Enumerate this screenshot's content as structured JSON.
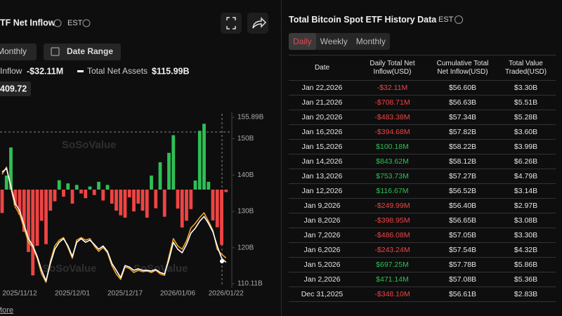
{
  "header": {
    "title": "TF Net Inflow",
    "timezone": "EST"
  },
  "controls": {
    "period": "Monthly",
    "date_range": "Date Range"
  },
  "watermark": "SoSoValue",
  "more": "More",
  "chart_data": {
    "type": "combo",
    "categories": [
      null,
      null,
      null,
      null,
      "2025/11/12",
      null,
      null,
      null,
      null,
      null,
      null,
      null,
      null,
      null,
      null,
      null,
      "2025/12/01",
      null,
      null,
      null,
      null,
      null,
      null,
      null,
      null,
      null,
      null,
      null,
      "2025/12/17",
      null,
      null,
      null,
      null,
      null,
      null,
      null,
      null,
      null,
      null,
      null,
      "2026/01/06",
      null,
      null,
      null,
      null,
      null,
      null,
      null,
      null,
      null,
      null,
      "2026/01/22"
    ],
    "series": [
      {
        "name": "Inflow",
        "value_label": "-$32.11M",
        "type": "bar",
        "axis": "y2",
        "color": "#2fbf55",
        "negative_color": "#ef4444",
        "values": [
          -300,
          180,
          540,
          -200,
          -320,
          -540,
          -800,
          -1100,
          -720,
          -400,
          -700,
          -270,
          -150,
          120,
          -90,
          80,
          -180,
          60,
          -50,
          -110,
          40,
          -70,
          100,
          -140,
          60,
          -180,
          -270,
          -330,
          -360,
          -100,
          -280,
          -180,
          -270,
          -360,
          180,
          -240,
          350,
          -348.1,
          471.14,
          697.25,
          -243.24,
          -486.08,
          -398.95,
          -249.99,
          116.67,
          753.73,
          843.62,
          100.18,
          -394.68,
          -483.38,
          -708.71,
          -32.11
        ]
      },
      {
        "name": "Total Net Assets",
        "value_label": "$115.99B",
        "type": "line",
        "color": "#ffffff",
        "values": [
          140.8,
          141.8,
          136.9,
          132.1,
          130.2,
          126.3,
          122.5,
          120.5,
          117.6,
          113.8,
          110.9,
          115.7,
          119.6,
          121.5,
          122.5,
          120.5,
          117.6,
          121.5,
          122.5,
          121.5,
          122.1,
          120.9,
          119.6,
          120.5,
          119.0,
          115.7,
          113.8,
          111.8,
          115.1,
          114.7,
          113.8,
          114.2,
          113.8,
          113.8,
          113.6,
          114.0,
          113.2,
          112.8,
          116.7,
          121.5,
          119.6,
          118.6,
          120.9,
          124.0,
          125.4,
          127.3,
          128.6,
          126.7,
          124.4,
          120.5,
          117.1,
          115.99
        ]
      },
      {
        "value_label": "409.72",
        "type": "line",
        "color": "#f0a526",
        "values": [
          140.2,
          142.2,
          136.4,
          131.2,
          129.2,
          125.4,
          121.5,
          120.1,
          117.1,
          112.8,
          110.5,
          116.3,
          120.5,
          122.1,
          122.8,
          120.1,
          117.1,
          122.1,
          122.8,
          122.1,
          122.5,
          120.5,
          119.0,
          120.1,
          118.6,
          115.1,
          112.8,
          111.3,
          114.7,
          114.3,
          113.2,
          113.8,
          113.4,
          113.6,
          113.2,
          113.8,
          112.8,
          112.4,
          117.6,
          122.5,
          120.5,
          119.6,
          121.9,
          125.4,
          126.7,
          128.3,
          129.6,
          127.3,
          124.8,
          119.6,
          118.2,
          117.2
        ]
      }
    ],
    "ylim": [
      110.11,
      155.89
    ],
    "yticks": [
      {
        "value": 155.89,
        "label": "155.89B"
      },
      {
        "value": 150,
        "label": "150B"
      },
      {
        "value": 140,
        "label": "140B"
      },
      {
        "value": 130,
        "label": "130B"
      },
      {
        "value": 120,
        "label": "120B"
      },
      {
        "value": 110.11,
        "label": "110.11B"
      }
    ],
    "y2lim": [
      -1260,
      990
    ],
    "grid": false
  },
  "history": {
    "title": "Total Bitcoin Spot ETF History Data",
    "timezone": "EST",
    "tabs": [
      "Daily",
      "Weekly",
      "Monthly"
    ],
    "active_tab": 0,
    "positive_color": "#2fbf55",
    "negative_color": "#ef4444",
    "table": {
      "columns": [
        "Date",
        "Daily Total Net Inflow(USD)",
        "Cumulative Total Net Inflow(USD)",
        "Total Value Traded(USD)"
      ],
      "rows": [
        [
          "Jan 22,2026",
          "-$32.11M",
          "$56.60B",
          "$3.30B"
        ],
        [
          "Jan 21,2026",
          "-$708.71M",
          "$56.63B",
          "$5.51B"
        ],
        [
          "Jan 20,2026",
          "-$483.38M",
          "$57.34B",
          "$5.28B"
        ],
        [
          "Jan 16,2026",
          "-$394.68M",
          "$57.82B",
          "$3.60B"
        ],
        [
          "Jan 15,2026",
          "$100.18M",
          "$58.22B",
          "$3.99B"
        ],
        [
          "Jan 14,2026",
          "$843.62M",
          "$58.12B",
          "$6.26B"
        ],
        [
          "Jan 13,2026",
          "$753.73M",
          "$57.27B",
          "$4.79B"
        ],
        [
          "Jan 12,2026",
          "$116.67M",
          "$56.52B",
          "$3.14B"
        ],
        [
          "Jan 9,2026",
          "-$249.99M",
          "$56.40B",
          "$2.97B"
        ],
        [
          "Jan 8,2026",
          "-$398.95M",
          "$56.65B",
          "$3.08B"
        ],
        [
          "Jan 7,2026",
          "-$486.08M",
          "$57.05B",
          "$3.30B"
        ],
        [
          "Jan 6,2026",
          "-$243.24M",
          "$57.54B",
          "$4.32B"
        ],
        [
          "Jan 5,2026",
          "$697.25M",
          "$57.78B",
          "$5.86B"
        ],
        [
          "Jan 2,2026",
          "$471.14M",
          "$57.08B",
          "$5.36B"
        ],
        [
          "Dec 31,2025",
          "-$348.10M",
          "$56.61B",
          "$2.83B"
        ]
      ]
    }
  }
}
